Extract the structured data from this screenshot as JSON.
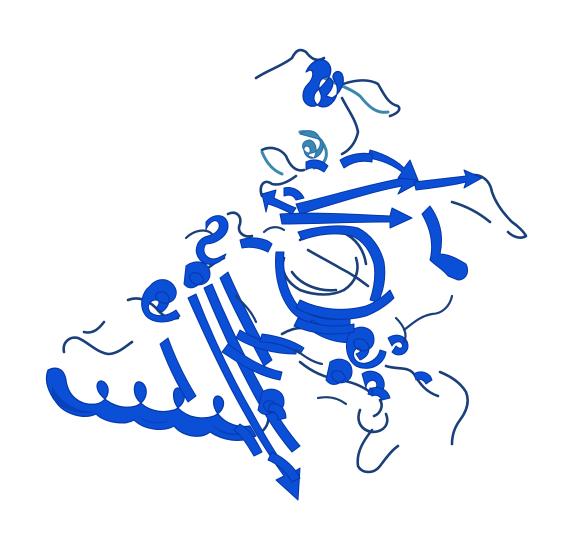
{
  "image": {
    "subject": "protein-cartoon",
    "background_color": "#ffffff",
    "colors": {
      "high_confidence": "#0a4fd6",
      "high_confidence_dark": "#0637a8",
      "medium_confidence": "#2a6aa8",
      "low_confidence": "#3a88b0",
      "coil": "#1a3f7a"
    }
  }
}
